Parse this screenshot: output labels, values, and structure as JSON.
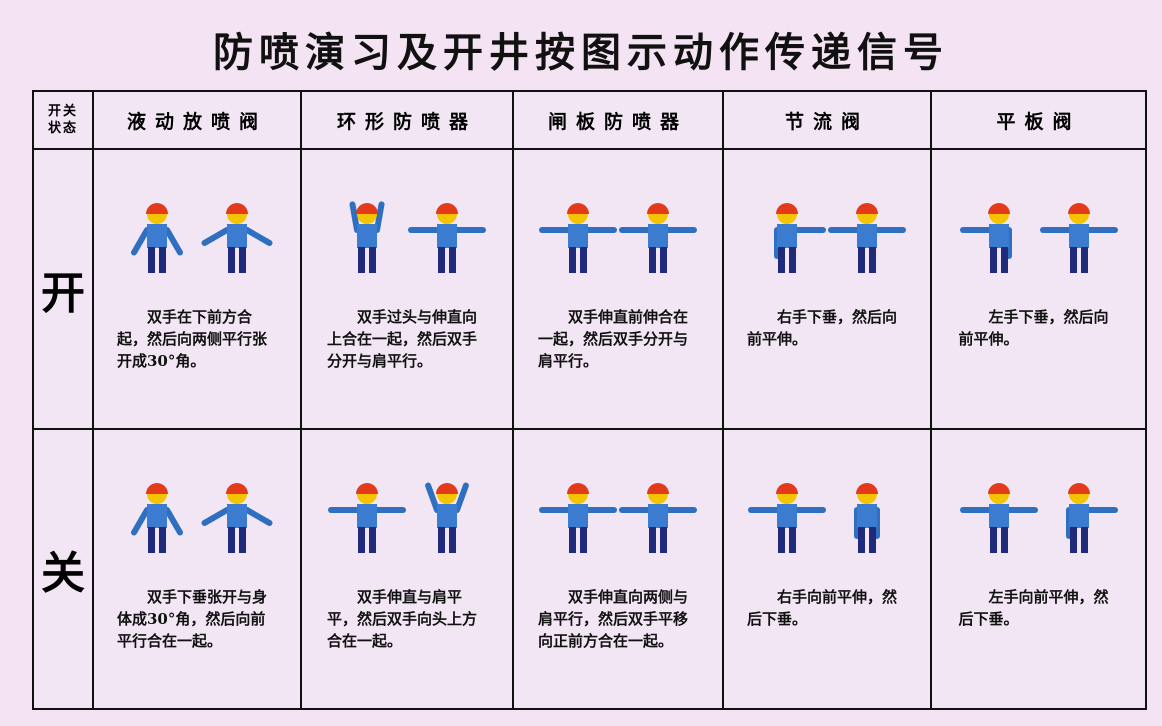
{
  "title": "防喷演习及开井按图示动作传递信号",
  "table": {
    "corner": [
      "开关",
      "状态"
    ],
    "columns": [
      "液动放喷阀",
      "环形防喷器",
      "闸板防喷器",
      "节流阀",
      "平板阀"
    ],
    "rows": [
      {
        "state": "开",
        "cells": [
          "双手在下前方合起，然后向两侧平行张开成30°角。",
          "双手过头与伸直向上合在一起，然后双手分开与肩平行。",
          "双手伸直前伸合在一起，然后双手分开与肩平行。",
          "右手下垂，然后向前平伸。",
          "左手下垂，然后向前平伸。"
        ]
      },
      {
        "state": "关",
        "cells": [
          "双手下垂张开与身体成30°角，然后向前平行合在一起。",
          "双手伸直与肩平平，然后双手向头上方合在一起。",
          "双手伸直向两侧与肩平行，然后双手平移向正前方合在一起。",
          "右手向前平伸，然后下垂。",
          "左手向前平伸，然后下垂。"
        ]
      }
    ]
  }
}
